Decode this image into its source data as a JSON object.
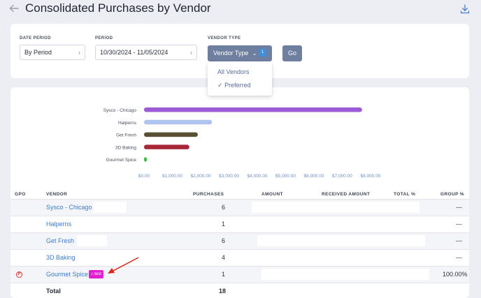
{
  "header": {
    "title": "Consolidated Purchases by Vendor"
  },
  "filters": {
    "date_period_label": "DATE PERIOD",
    "date_period_value": "By Period",
    "period_label": "PERIOD",
    "period_value": "10/30/2024 - 11/05/2024",
    "vendor_type_label": "VENDOR TYPE",
    "vendor_type_button": "Vendor Type",
    "vendor_type_count": "1",
    "go_label": "Go",
    "dropdown_options": [
      "All Vendors",
      "Preferred"
    ],
    "dropdown_selected": "Preferred"
  },
  "chart_data": {
    "type": "bar",
    "orientation": "horizontal",
    "categories": [
      "Sysco - Chicago",
      "Halperns",
      "Get Fresh",
      "3D Baking",
      "Gourmet Spice"
    ],
    "values": [
      7700,
      2400,
      1900,
      1600,
      100
    ],
    "colors": [
      "#9b5bd6",
      "#aec4ef",
      "#5a5033",
      "#a8283a",
      "#2bbf37"
    ],
    "xticks": [
      "$0.00",
      "$1,000.00",
      "$2,000.00",
      "$3,000.00",
      "$4,000.00",
      "$5,000.00",
      "$6,000.00",
      "$7,000.00",
      "$8,000.00"
    ],
    "xlim": [
      0,
      8000
    ],
    "title": "",
    "xlabel": "",
    "ylabel": "",
    "grid": false,
    "legend": "none"
  },
  "table": {
    "headers": {
      "gpo": "GPO",
      "vendor": "VENDOR",
      "purchases": "PURCHASES",
      "amount": "AMOUNT",
      "received_amount": "RECEIVED AMOUNT",
      "total_pct": "TOTAL %",
      "group_pct": "GROUP %"
    },
    "rows": [
      {
        "vendor": "Sysco - Chicago",
        "purchases": "6",
        "group_pct": "---"
      },
      {
        "vendor": "Halperns",
        "purchases": "1",
        "group_pct": "---"
      },
      {
        "vendor": "Get Fresh",
        "purchases": "6",
        "group_pct": "---"
      },
      {
        "vendor": "3D Baking",
        "purchases": "4",
        "group_pct": "---"
      },
      {
        "vendor": "Gourmet Spice",
        "purchases": "1",
        "group_pct": "100.00%",
        "gpo_flag": "P",
        "tag": "test"
      }
    ],
    "total": {
      "label": "Total",
      "purchases": "18"
    }
  },
  "colors": {
    "accent_button": "#6f7f9f",
    "link": "#3a7cc7",
    "tag": "#e11fd0",
    "annotation_arrow": "#e0261c"
  }
}
